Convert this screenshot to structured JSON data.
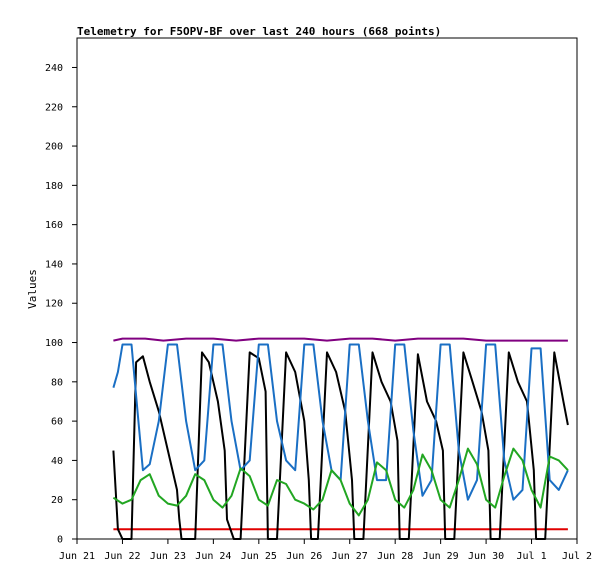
{
  "chart_data": {
    "type": "line",
    "title": "Telemetry for F5OPV-BF over last 240 hours (668 points)",
    "ylabel": "Values",
    "xlabel": "",
    "ylim": [
      0,
      255
    ],
    "yticks": [
      0,
      20,
      40,
      60,
      80,
      100,
      120,
      140,
      160,
      180,
      200,
      220,
      240
    ],
    "xlim_days": [
      0,
      11
    ],
    "xtick_labels": [
      "Jun 21",
      "Jun 22",
      "Jun 23",
      "Jun 24",
      "Jun 25",
      "Jun 26",
      "Jun 27",
      "Jun 28",
      "Jun 29",
      "Jun 30",
      "Jul 1",
      "Jul 2"
    ],
    "colors": {
      "purple": "#800080",
      "red": "#e00000",
      "black": "#000000",
      "blue": "#1a6fc4",
      "green": "#22a622"
    },
    "series": [
      {
        "color": "purple",
        "x": [
          0.8,
          1.0,
          1.5,
          1.9,
          2.4,
          3.0,
          3.5,
          4.0,
          4.5,
          5.0,
          5.5,
          6.0,
          6.5,
          7.0,
          7.5,
          8.0,
          8.5,
          9.0,
          9.5,
          10.0,
          10.5,
          10.8
        ],
        "y": [
          101,
          102,
          102,
          101,
          102,
          102,
          101,
          102,
          102,
          102,
          101,
          102,
          102,
          101,
          102,
          102,
          102,
          101,
          101,
          101,
          101,
          101
        ]
      },
      {
        "color": "red",
        "x": [
          0.8,
          10.8
        ],
        "y": [
          5,
          5
        ]
      },
      {
        "color": "black",
        "x": [
          0.8,
          0.9,
          1.0,
          1.1,
          1.2,
          1.3,
          1.45,
          1.6,
          1.8,
          2.0,
          2.2,
          2.25,
          2.3,
          2.45,
          2.6,
          2.75,
          2.9,
          3.1,
          3.25,
          3.3,
          3.45,
          3.6,
          3.8,
          4.0,
          4.15,
          4.2,
          4.4,
          4.6,
          4.8,
          5.0,
          5.1,
          5.15,
          5.3,
          5.5,
          5.7,
          5.9,
          6.05,
          6.1,
          6.3,
          6.5,
          6.7,
          6.9,
          7.05,
          7.1,
          7.3,
          7.5,
          7.7,
          7.9,
          8.05,
          8.1,
          8.3,
          8.5,
          8.7,
          8.9,
          9.05,
          9.1,
          9.3,
          9.5,
          9.7,
          9.9,
          10.05,
          10.1,
          10.3,
          10.5,
          10.7,
          10.8
        ],
        "y": [
          45,
          5,
          0,
          0,
          0,
          90,
          93,
          80,
          65,
          45,
          25,
          10,
          0,
          0,
          0,
          95,
          90,
          70,
          45,
          10,
          0,
          0,
          95,
          92,
          75,
          0,
          0,
          95,
          85,
          60,
          30,
          0,
          0,
          95,
          85,
          65,
          30,
          0,
          0,
          95,
          80,
          70,
          50,
          0,
          0,
          94,
          70,
          60,
          45,
          0,
          0,
          95,
          80,
          65,
          45,
          0,
          0,
          95,
          80,
          70,
          35,
          0,
          0,
          95,
          70,
          58
        ]
      },
      {
        "color": "blue",
        "x": [
          0.8,
          0.9,
          1.0,
          1.2,
          1.35,
          1.45,
          1.6,
          1.8,
          2.0,
          2.2,
          2.4,
          2.6,
          2.8,
          3.0,
          3.2,
          3.4,
          3.6,
          3.8,
          4.0,
          4.2,
          4.4,
          4.6,
          4.8,
          5.0,
          5.2,
          5.4,
          5.6,
          5.8,
          6.0,
          6.2,
          6.4,
          6.6,
          6.8,
          7.0,
          7.2,
          7.4,
          7.6,
          7.8,
          8.0,
          8.2,
          8.4,
          8.6,
          8.8,
          9.0,
          9.2,
          9.4,
          9.6,
          9.8,
          10.0,
          10.2,
          10.4,
          10.6,
          10.8
        ],
        "y": [
          77,
          85,
          99,
          99,
          60,
          35,
          38,
          60,
          99,
          99,
          60,
          35,
          40,
          99,
          99,
          60,
          35,
          40,
          99,
          99,
          60,
          40,
          35,
          99,
          99,
          60,
          35,
          30,
          99,
          99,
          60,
          30,
          30,
          99,
          99,
          55,
          22,
          30,
          99,
          99,
          45,
          20,
          30,
          99,
          99,
          40,
          20,
          25,
          97,
          97,
          30,
          25,
          35
        ]
      },
      {
        "color": "green",
        "x": [
          0.8,
          1.0,
          1.2,
          1.4,
          1.6,
          1.8,
          2.0,
          2.2,
          2.4,
          2.6,
          2.8,
          3.0,
          3.2,
          3.4,
          3.6,
          3.8,
          4.0,
          4.2,
          4.4,
          4.6,
          4.8,
          5.0,
          5.2,
          5.4,
          5.6,
          5.8,
          6.0,
          6.2,
          6.4,
          6.6,
          6.8,
          7.0,
          7.2,
          7.4,
          7.6,
          7.8,
          8.0,
          8.2,
          8.4,
          8.6,
          8.8,
          9.0,
          9.2,
          9.4,
          9.6,
          9.8,
          10.0,
          10.2,
          10.4,
          10.6,
          10.8
        ],
        "y": [
          21,
          18,
          20,
          30,
          33,
          22,
          18,
          17,
          22,
          33,
          30,
          20,
          16,
          22,
          36,
          32,
          20,
          17,
          30,
          28,
          20,
          18,
          15,
          20,
          35,
          30,
          18,
          12,
          20,
          39,
          35,
          20,
          16,
          25,
          43,
          35,
          20,
          16,
          30,
          46,
          38,
          20,
          16,
          32,
          46,
          40,
          25,
          16,
          42,
          40,
          35
        ]
      }
    ]
  }
}
